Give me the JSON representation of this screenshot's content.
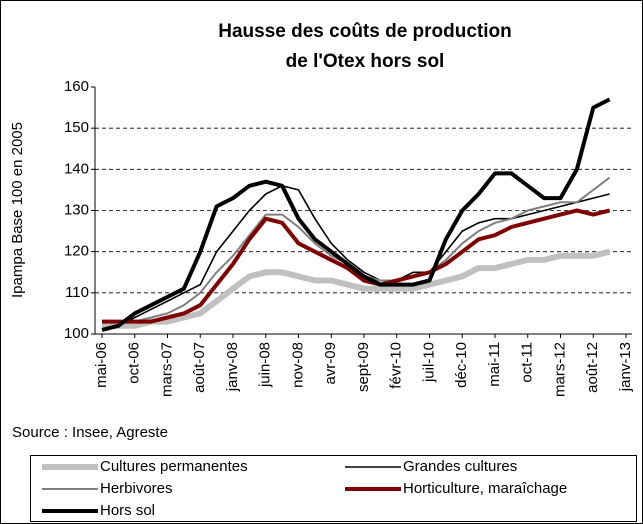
{
  "chart_data": {
    "type": "line",
    "title": "Hausse des coûts de production",
    "subtitle": "de l'Otex hors sol",
    "y_label": "Ipampa Base 100 en  2005",
    "source": "Source : Insee, Agreste",
    "categories": [
      "mai-06",
      null,
      "oct-06",
      null,
      "mars-07",
      null,
      "août-07",
      null,
      "janv-08",
      null,
      "juin-08",
      null,
      "nov-08",
      null,
      "avr-09",
      null,
      "sept-09",
      null,
      "févr-10",
      null,
      "juil-10",
      null,
      "déc-10",
      null,
      "mai-11",
      null,
      "oct-11",
      null,
      "mars-12",
      null,
      "août-12",
      null,
      "janv-13"
    ],
    "series": [
      {
        "name": "Cultures permanentes",
        "color": "#c0c0c0",
        "width": 6,
        "values": [
          102,
          102,
          102,
          103,
          103,
          104,
          105,
          108,
          111,
          114,
          115,
          115,
          114,
          113,
          113,
          112,
          111,
          111,
          111,
          111,
          112,
          113,
          114,
          116,
          116,
          117,
          118,
          118,
          119,
          119,
          119,
          120,
          null
        ]
      },
      {
        "name": "Grandes cultures",
        "color": "#000000",
        "width": 1.6,
        "values": [
          101,
          102,
          104,
          106,
          108,
          110,
          112,
          120,
          125,
          130,
          134,
          136,
          135,
          128,
          122,
          118,
          115,
          113,
          113,
          115,
          115,
          120,
          125,
          127,
          128,
          128,
          129,
          130,
          131,
          132,
          133,
          134,
          null
        ]
      },
      {
        "name": "Herbivores",
        "color": "#808080",
        "width": 2,
        "values": [
          103,
          103,
          103,
          104,
          105,
          107,
          110,
          115,
          119,
          124,
          129,
          129,
          126,
          122,
          119,
          117,
          114,
          113,
          113,
          114,
          115,
          118,
          122,
          125,
          127,
          128,
          130,
          131,
          132,
          132,
          135,
          138,
          null
        ]
      },
      {
        "name": "Horticulture, maraîchage",
        "color": "#800000",
        "width": 4,
        "values": [
          103,
          103,
          103,
          103,
          104,
          105,
          107,
          112,
          117,
          123,
          128,
          127,
          122,
          120,
          118,
          116,
          113,
          112,
          113,
          114,
          115,
          117,
          120,
          123,
          124,
          126,
          127,
          128,
          129,
          130,
          129,
          130,
          null
        ]
      },
      {
        "name": "Hors sol",
        "color": "#000000",
        "width": 4,
        "values": [
          101,
          102,
          105,
          107,
          109,
          111,
          120,
          131,
          133,
          136,
          137,
          136,
          128,
          123,
          120,
          117,
          114,
          112,
          112,
          112,
          113,
          123,
          130,
          134,
          139,
          139,
          136,
          133,
          133,
          140,
          155,
          157,
          null
        ]
      }
    ],
    "ylim": [
      100,
      160
    ],
    "yticks": [
      100,
      110,
      120,
      130,
      140,
      150,
      160
    ],
    "grid": true
  }
}
